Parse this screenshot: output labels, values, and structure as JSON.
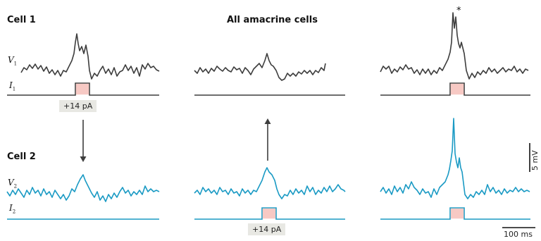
{
  "labels": {
    "cell1": "Cell 1",
    "cell2": "Cell 2",
    "title": "All amacrine cells",
    "v1": "V",
    "v1_sub": "1",
    "i1": "I",
    "i1_sub": "1",
    "v2": "V",
    "v2_sub": "2",
    "i2": "I",
    "i2_sub": "2",
    "current_left": "+14 pA",
    "current_mid": "+14 pA",
    "asterisk": "*",
    "scale_v": "5 mV",
    "scale_t": "100 ms"
  },
  "colors": {
    "cell1_trace": "#3d3d3d",
    "cell2_trace": "#1a9ac4",
    "pulse_fill": "#f7c9c4",
    "label_box": "#e8e8e3",
    "arrow": "#3d3d3d"
  }
}
